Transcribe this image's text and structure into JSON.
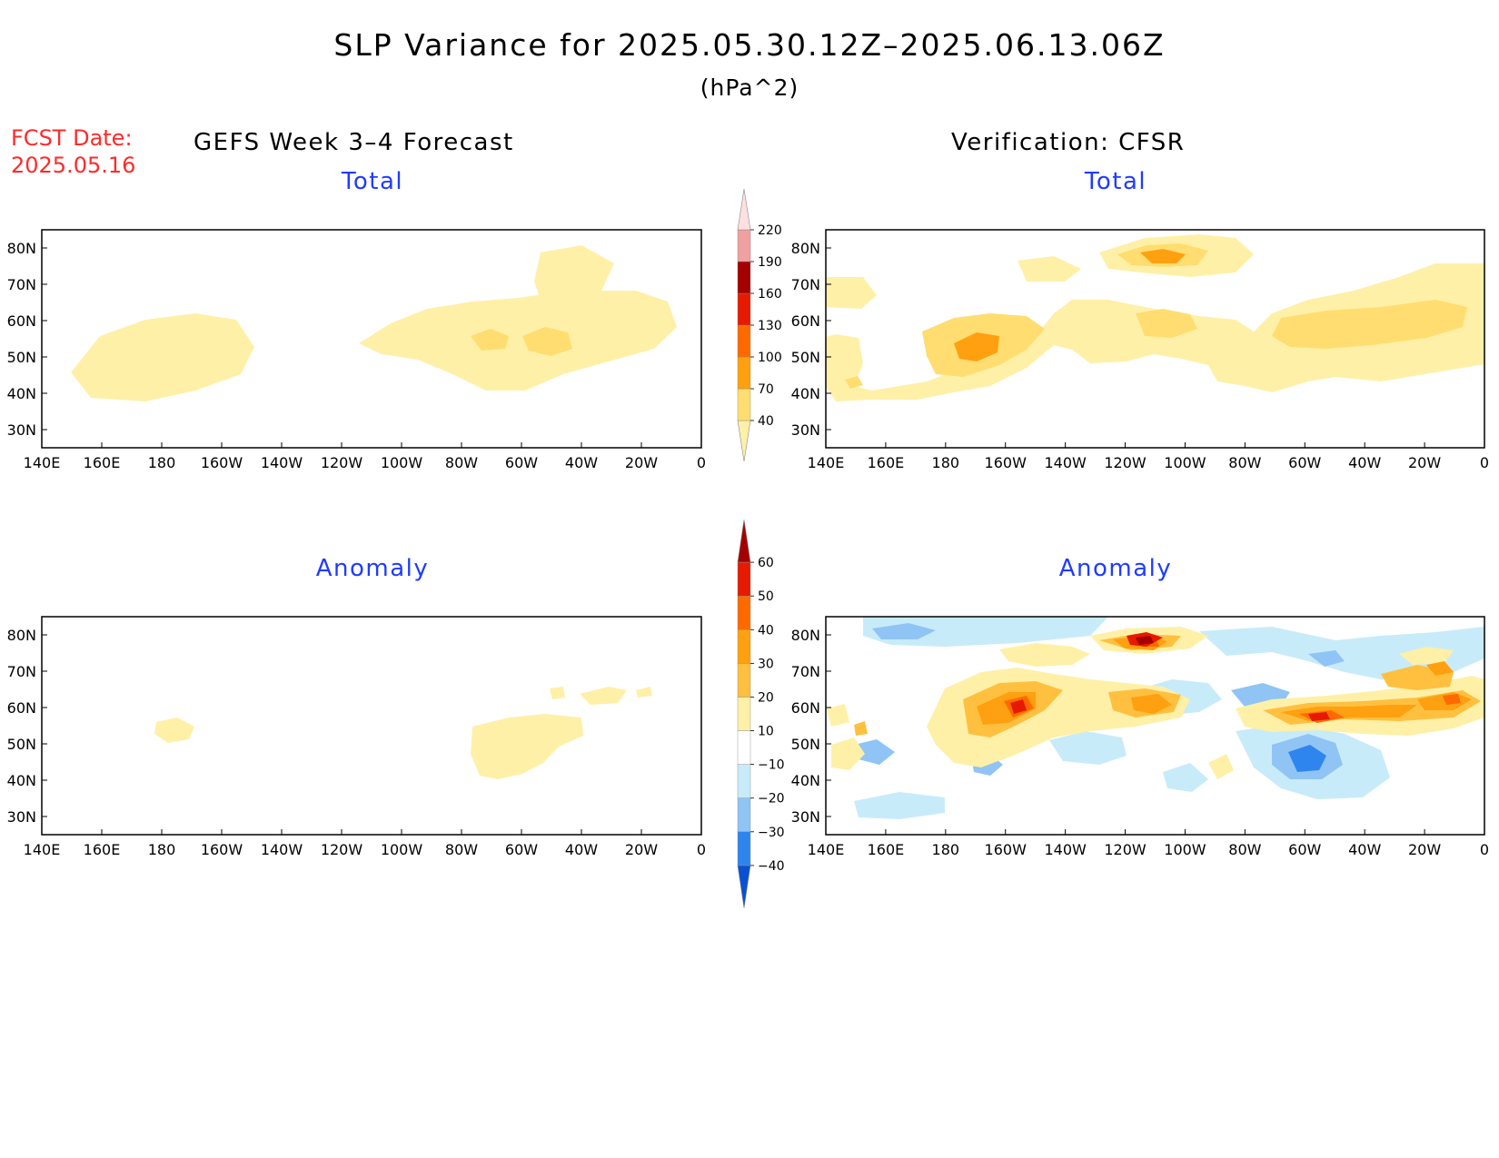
{
  "title": "SLP Variance for 2025.05.30.12Z–2025.06.13.06Z",
  "units": "(hPa^2)",
  "fcst_label": "FCST Date:",
  "fcst_date": "2025.05.16",
  "left_column_title": "GEFS Week 3–4 Forecast",
  "right_column_title": "Verification: CFSR",
  "panels": {
    "forecast_total": {
      "subtitle": "Total"
    },
    "forecast_anomaly": {
      "subtitle": "Anomaly"
    },
    "verification_total": {
      "subtitle": "Total"
    },
    "verification_anomaly": {
      "subtitle": "Anomaly"
    }
  },
  "axes": {
    "x_ticks": [
      "140E",
      "160E",
      "180",
      "160W",
      "140W",
      "120W",
      "100W",
      "80W",
      "60W",
      "40W",
      "20W",
      "0"
    ],
    "y_ticks": [
      "30N",
      "40N",
      "50N",
      "60N",
      "70N",
      "80N"
    ],
    "lon_range": [
      140,
      360
    ],
    "lat_range": [
      25,
      85
    ]
  },
  "colorbars": {
    "total": {
      "levels": [
        "40",
        "70",
        "100",
        "130",
        "160",
        "190",
        "220"
      ],
      "colors": [
        "#fff0a8",
        "#ffdd70",
        "#ffa010",
        "#ff6a00",
        "#e61a00",
        "#a50000",
        "#f0a0a0",
        "#ffe0e0"
      ]
    },
    "anomaly": {
      "levels": [
        "−40",
        "−30",
        "−20",
        "−10",
        "10",
        "20",
        "30",
        "40",
        "50",
        "60"
      ],
      "colors": [
        "#0a50d2",
        "#2f85ee",
        "#8fc4f5",
        "#c8ebfa",
        "#ffffff",
        "#fff0a8",
        "#ffc040",
        "#ffa010",
        "#ff6a00",
        "#e61a00",
        "#a50000"
      ]
    }
  },
  "chart_data": [
    {
      "type": "heatmap",
      "panel": "forecast_total",
      "title": "Total",
      "features": [
        {
          "region": "North Pacific 40-50N, 160E-160W",
          "level": "40-70"
        },
        {
          "region": "Greenland / Davis Strait 60-80N",
          "level": "40-70"
        },
        {
          "region": "Hudson Bay to N Atlantic 45-65N",
          "level": "40-70"
        },
        {
          "region": "Labrador Sea core 52-58N, 75-50W",
          "level": "70-100"
        }
      ]
    },
    {
      "type": "heatmap",
      "panel": "verification_total",
      "title": "Total",
      "features": [
        {
          "region": "Canadian Arctic Archipelago 75-83N",
          "level": "100-130 max"
        },
        {
          "region": "Gulf of Alaska 45-60N, 170E-140W",
          "level": "70-130"
        },
        {
          "region": "Hudson Bay 55-65N",
          "level": "70-100"
        },
        {
          "region": "N Atlantic 45-65N, 60W-0",
          "level": "70-100"
        }
      ]
    },
    {
      "type": "heatmap",
      "panel": "forecast_anomaly",
      "title": "Anomaly",
      "features": [
        {
          "region": "Gulf of St. Lawrence 42-58N, 80-55W",
          "level": "10-20"
        },
        {
          "region": "Western Aleutians 52-58N",
          "level": "10-20"
        },
        {
          "region": "S Greenland 65-70N",
          "level": "10-20"
        }
      ]
    },
    {
      "type": "heatmap",
      "panel": "verification_anomaly",
      "title": "Anomaly",
      "features": [
        {
          "region": "Canadian Arctic 75-82N, 120-90W",
          "level": "50-60+"
        },
        {
          "region": "Gulf of Alaska 50-60N",
          "level": "40-60"
        },
        {
          "region": "Hudson Bay W 55-62N",
          "level": "30-40"
        },
        {
          "region": "Hudson Bay / Labrador 58-65N",
          "level": "-20 to -10"
        },
        {
          "region": "Labrador Sea 55-60N, 50-40W",
          "level": "40-60"
        },
        {
          "region": "Mid-Atlantic 40-50N, 50-30W",
          "level": "-40 to -20"
        },
        {
          "region": "NE Atlantic 55-65N, 20W-0",
          "level": "30-50"
        }
      ]
    }
  ]
}
